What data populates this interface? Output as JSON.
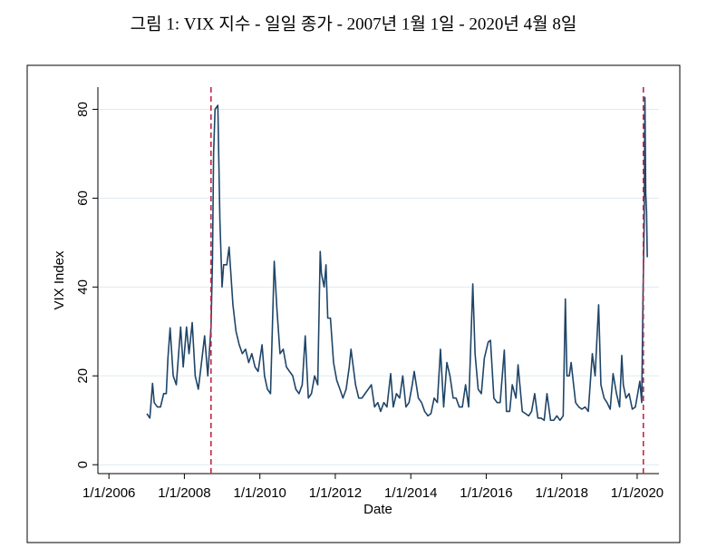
{
  "chart_data": {
    "type": "line",
    "title": "그림 1: VIX 지수 - 일일 종가 - 2007년 1월 1일 - 2020년 4월 8일",
    "x_label": "Date",
    "y_label": "VIX Index",
    "xlim": [
      "2005-09-16",
      "2020-07-30"
    ],
    "xticks": [
      {
        "value": "2006-01-01",
        "label": "1/1/2006"
      },
      {
        "value": "2008-01-01",
        "label": "1/1/2008"
      },
      {
        "value": "2010-01-01",
        "label": "1/1/2010"
      },
      {
        "value": "2012-01-01",
        "label": "1/1/2012"
      },
      {
        "value": "2014-01-01",
        "label": "1/1/2014"
      },
      {
        "value": "2016-01-01",
        "label": "1/1/2016"
      },
      {
        "value": "2018-01-01",
        "label": "1/1/2018"
      },
      {
        "value": "2020-01-01",
        "label": "1/1/2020"
      }
    ],
    "ylim": [
      -2,
      85
    ],
    "yticks": [
      0,
      20,
      40,
      60,
      80
    ],
    "grid": true,
    "vlines": [
      "2008-09-15",
      "2020-03-01"
    ],
    "vline_color": "#c0284a",
    "series": [
      {
        "name": "VIX Index",
        "color": "#1f4568",
        "x": [
          "2007-01-03",
          "2007-02-01",
          "2007-02-27",
          "2007-03-15",
          "2007-04-15",
          "2007-05-15",
          "2007-06-15",
          "2007-07-10",
          "2007-07-26",
          "2007-08-16",
          "2007-09-15",
          "2007-10-15",
          "2007-11-26",
          "2007-12-21",
          "2008-01-22",
          "2008-02-15",
          "2008-03-17",
          "2008-04-15",
          "2008-05-15",
          "2008-06-15",
          "2008-07-15",
          "2008-08-15",
          "2008-09-15",
          "2008-09-29",
          "2008-10-10",
          "2008-10-24",
          "2008-11-20",
          "2008-12-10",
          "2008-12-31",
          "2009-01-15",
          "2009-02-15",
          "2009-03-09",
          "2009-04-15",
          "2009-05-15",
          "2009-06-15",
          "2009-07-15",
          "2009-08-15",
          "2009-09-15",
          "2009-10-15",
          "2009-11-15",
          "2009-12-15",
          "2010-01-22",
          "2010-02-15",
          "2010-03-15",
          "2010-04-14",
          "2010-05-20",
          "2010-06-15",
          "2010-07-15",
          "2010-08-15",
          "2010-09-15",
          "2010-10-15",
          "2010-11-15",
          "2010-12-15",
          "2011-01-15",
          "2011-02-15",
          "2011-03-16",
          "2011-04-15",
          "2011-05-15",
          "2011-06-15",
          "2011-07-15",
          "2011-08-08",
          "2011-08-20",
          "2011-09-15",
          "2011-10-03",
          "2011-10-20",
          "2011-11-15",
          "2011-12-15",
          "2012-01-15",
          "2012-02-15",
          "2012-03-15",
          "2012-04-15",
          "2012-05-15",
          "2012-06-01",
          "2012-07-15",
          "2012-08-15",
          "2012-09-15",
          "2012-10-15",
          "2012-11-15",
          "2012-12-15",
          "2013-01-15",
          "2013-02-15",
          "2013-03-15",
          "2013-04-15",
          "2013-05-15",
          "2013-06-20",
          "2013-07-15",
          "2013-08-15",
          "2013-09-15",
          "2013-10-15",
          "2013-11-15",
          "2013-12-15",
          "2014-01-15",
          "2014-02-03",
          "2014-03-15",
          "2014-04-15",
          "2014-05-15",
          "2014-06-15",
          "2014-07-15",
          "2014-08-15",
          "2014-09-15",
          "2014-10-15",
          "2014-11-15",
          "2014-12-16",
          "2015-01-15",
          "2015-02-15",
          "2015-03-15",
          "2015-04-15",
          "2015-05-15",
          "2015-06-15",
          "2015-07-15",
          "2015-08-24",
          "2015-09-15",
          "2015-10-15",
          "2015-11-15",
          "2015-12-14",
          "2016-01-20",
          "2016-02-11",
          "2016-03-15",
          "2016-04-15",
          "2016-05-15",
          "2016-06-24",
          "2016-07-15",
          "2016-08-15",
          "2016-09-09",
          "2016-10-15",
          "2016-11-04",
          "2016-12-15",
          "2017-01-15",
          "2017-02-15",
          "2017-03-15",
          "2017-04-14",
          "2017-05-15",
          "2017-06-15",
          "2017-07-15",
          "2017-08-11",
          "2017-09-15",
          "2017-10-15",
          "2017-11-15",
          "2017-12-15",
          "2018-01-15",
          "2018-02-05",
          "2018-02-20",
          "2018-03-15",
          "2018-04-02",
          "2018-05-15",
          "2018-06-15",
          "2018-07-15",
          "2018-08-15",
          "2018-09-15",
          "2018-10-24",
          "2018-11-20",
          "2018-12-24",
          "2019-01-15",
          "2019-02-15",
          "2019-03-15",
          "2019-04-15",
          "2019-05-13",
          "2019-06-15",
          "2019-07-15",
          "2019-08-05",
          "2019-08-20",
          "2019-09-15",
          "2019-10-15",
          "2019-11-15",
          "2019-12-15",
          "2020-01-27",
          "2020-02-14",
          "2020-02-27",
          "2020-03-09",
          "2020-03-16",
          "2020-03-24",
          "2020-04-01",
          "2020-04-08"
        ],
        "values": [
          11.5,
          10.5,
          18.3,
          14,
          13,
          13,
          16,
          16,
          24,
          30.8,
          20,
          18,
          31,
          22,
          31,
          25,
          32,
          20,
          17,
          23,
          29,
          20,
          31,
          46,
          70,
          80,
          80.9,
          55,
          40,
          45,
          45,
          49,
          36,
          30,
          27,
          25,
          26,
          23,
          25,
          22,
          21,
          27,
          20,
          17,
          16,
          45.8,
          35,
          25,
          26,
          22,
          21,
          20,
          17,
          16,
          18,
          29,
          15,
          16,
          20,
          18,
          48,
          43,
          40,
          45,
          33,
          33,
          23,
          19,
          17,
          15,
          17,
          22,
          26,
          18,
          15,
          15,
          16,
          17,
          18,
          13,
          14,
          12,
          14,
          13,
          20.5,
          13,
          16,
          15,
          20,
          13,
          14,
          18,
          21,
          15,
          14,
          12,
          11,
          11.5,
          15,
          14,
          26,
          13,
          23,
          20,
          15,
          15,
          13,
          13,
          18,
          13,
          40.7,
          25,
          17,
          16,
          24,
          27.6,
          28,
          15,
          14,
          14,
          25.8,
          12,
          12,
          18,
          15,
          22.5,
          12,
          11.5,
          11,
          12,
          16,
          10.5,
          10.5,
          10,
          16,
          10,
          10,
          11,
          10,
          11,
          37.3,
          20,
          20,
          23,
          14,
          13,
          12.5,
          13,
          12,
          25,
          20,
          36,
          18,
          15,
          14,
          12.5,
          20.5,
          16,
          13,
          24.6,
          18,
          15,
          16,
          12.5,
          13,
          18.8,
          14,
          39,
          54,
          82.7,
          61,
          57,
          46.7
        ]
      }
    ]
  }
}
